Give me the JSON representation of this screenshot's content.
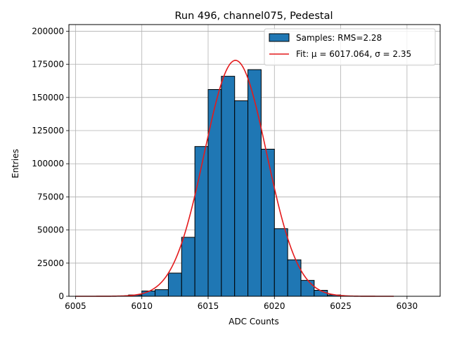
{
  "chart_data": {
    "type": "bar",
    "title": "Run 496, channel075, Pedestal",
    "xlabel": "ADC Counts",
    "ylabel": "Entries",
    "xlim": [
      6004.5,
      6032.5
    ],
    "ylim": [
      0,
      205000
    ],
    "xticks": [
      6005,
      6010,
      6015,
      6020,
      6025,
      6030
    ],
    "yticks": [
      0,
      25000,
      50000,
      75000,
      100000,
      125000,
      150000,
      175000,
      200000
    ],
    "grid": true,
    "legend_position": "top-right",
    "bin_width": 1,
    "bins": [
      {
        "left": 6009,
        "value": 1000
      },
      {
        "left": 6010,
        "value": 4000
      },
      {
        "left": 6011,
        "value": 5000
      },
      {
        "left": 6012,
        "value": 17500
      },
      {
        "left": 6013,
        "value": 44500
      },
      {
        "left": 6014,
        "value": 113000
      },
      {
        "left": 6015,
        "value": 156000
      },
      {
        "left": 6016,
        "value": 166000
      },
      {
        "left": 6017,
        "value": 147500
      },
      {
        "left": 6018,
        "value": 171000
      },
      {
        "left": 6019,
        "value": 111000
      },
      {
        "left": 6020,
        "value": 51000
      },
      {
        "left": 6021,
        "value": 27500
      },
      {
        "left": 6022,
        "value": 12000
      },
      {
        "left": 6023,
        "value": 4500
      },
      {
        "left": 6024,
        "value": 1000
      }
    ],
    "fit": {
      "mu": 6017.064,
      "sigma": 2.35,
      "amplitude": 178000,
      "x_range": [
        6005,
        6029
      ]
    },
    "series": [
      {
        "name": "Samples: RMS=2.28",
        "kind": "histogram",
        "color": "#1f77b4"
      },
      {
        "name": "Fit: μ = 6017.064, σ = 2.35",
        "kind": "line",
        "color": "#e41a1c"
      }
    ]
  }
}
